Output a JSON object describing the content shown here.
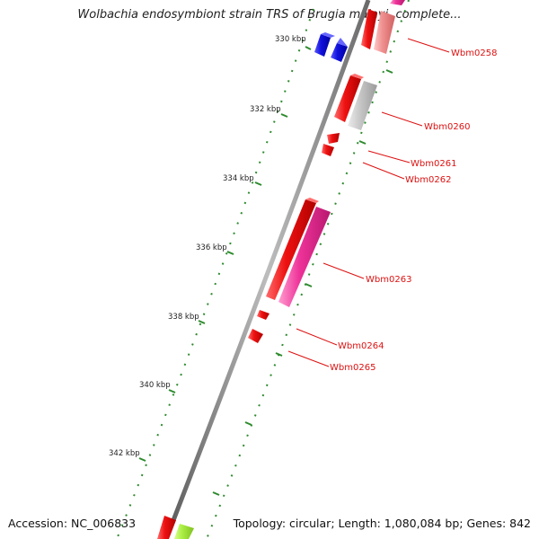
{
  "title": "Wolbachia endosymbiont strain TRS of Brugia malayi, complete...",
  "footer": {
    "accession": "Accession: NC_006833",
    "topology": "Topology: circular; Length: 1,080,084 bp; Genes: 842"
  },
  "ticks": [
    "330 kbp",
    "332 kbp",
    "334 kbp",
    "336 kbp",
    "338 kbp",
    "340 kbp",
    "342 kbp"
  ],
  "genes": [
    "Wbm0258",
    "Wbm0260",
    "Wbm0261",
    "Wbm0262",
    "Wbm0263",
    "Wbm0264",
    "Wbm0265"
  ],
  "colors": {
    "backbone": "#808080",
    "tick_dots": "#2e8b2e",
    "label": "#dd1111",
    "red_gene": "#ee1111",
    "pink_gene": "#ee3399",
    "light_red_gene": "#f09090",
    "gray_gene": "#c8c8c8",
    "blue_gene": "#1111dd",
    "green_gene": "#aaee44"
  }
}
